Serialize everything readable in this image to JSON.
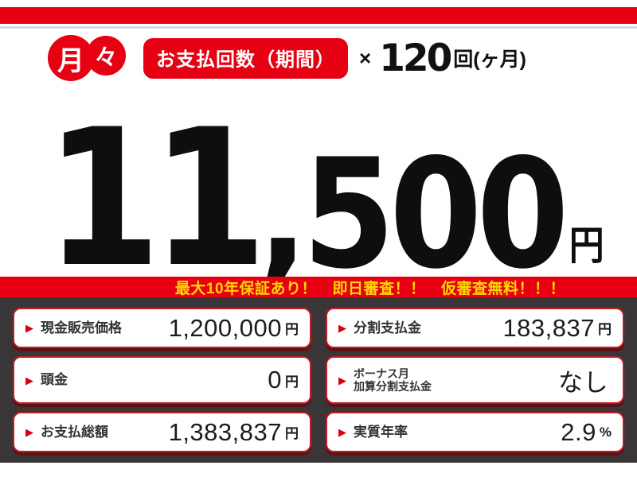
{
  "header": {
    "monthly_badge": {
      "first": "月",
      "second": "々"
    },
    "payment_count_label": "お支払回数（期間）",
    "multiply_sign": "×",
    "payment_count_value": "120",
    "payment_count_unit": "回(ヶ月)"
  },
  "price": {
    "main_digits": "11",
    "minor_digits": ",500",
    "currency": "円"
  },
  "promo_bar": {
    "text": "最大10年保証あり！　即日審査！！　仮審査無料！！！"
  },
  "details": {
    "items": [
      {
        "label": "現金販売価格",
        "value": "1,200,000",
        "suffix": "円"
      },
      {
        "label": "分割支払金",
        "value": "183,837",
        "suffix": "円"
      },
      {
        "label": "頭金",
        "value": "0",
        "suffix": "円"
      },
      {
        "label": "ボーナス月\n加算分割支払金",
        "value": "なし",
        "suffix": ""
      },
      {
        "label": "お支払総額",
        "value": "1,383,837",
        "suffix": "円"
      },
      {
        "label": "実質年率",
        "value": "2.9",
        "suffix": "%"
      }
    ]
  },
  "icons": {
    "arrow_icon": "▶"
  },
  "colors": {
    "accent_red": "#e60012",
    "promo_yellow": "#ffd800",
    "panel_dark": "#3a3637",
    "box_border_red": "#bf1c23"
  }
}
